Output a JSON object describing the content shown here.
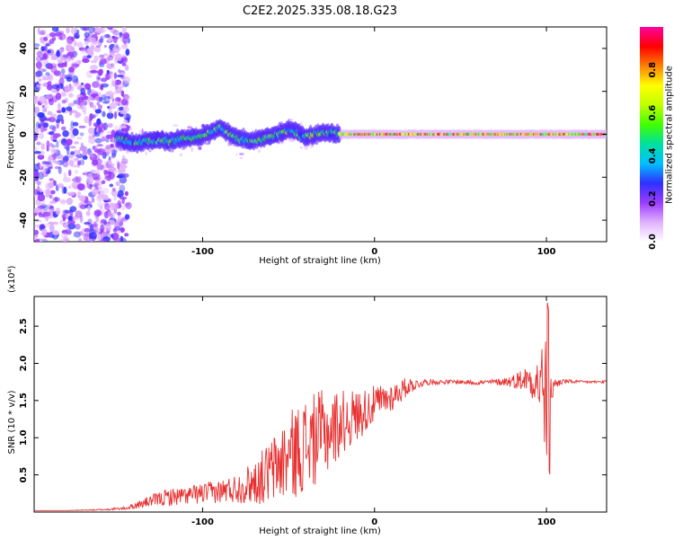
{
  "chart_data": [
    {
      "type": "heatmap",
      "title": "C2E2.2025.335.08.18.G23",
      "xlabel": "Height of straight line (km)",
      "ylabel": "Frequency (Hz)",
      "xlim": [
        -198,
        135
      ],
      "ylim": [
        -50,
        50
      ],
      "xticks": [
        -100,
        0,
        100
      ],
      "yticks": [
        -40,
        -20,
        0,
        20,
        40
      ],
      "xtick_labels": [
        "-100",
        "0",
        "100"
      ],
      "ytick_labels": [
        "-40",
        "-20",
        "0",
        "20",
        "40"
      ],
      "colorbar": {
        "label": "Normalized spectral amplitude",
        "range": [
          0.0,
          1.0
        ],
        "ticks": [
          0.0,
          0.2,
          0.4,
          0.6,
          0.8
        ],
        "tick_labels": [
          "0.0",
          "0.2",
          "0.4",
          "0.6",
          "0.8"
        ],
        "colors": [
          "#ffffff",
          "#e0b0ff",
          "#9a3cff",
          "#3030ff",
          "#00c0ff",
          "#00e0a0",
          "#40ff00",
          "#c0ff00",
          "#ffff00",
          "#ff8000",
          "#ff0000",
          "#ff00a0"
        ]
      },
      "ridge": [
        {
          "x": -150,
          "y": -2
        },
        {
          "x": -140,
          "y": -4
        },
        {
          "x": -130,
          "y": -3
        },
        {
          "x": -120,
          "y": -3
        },
        {
          "x": -110,
          "y": -2
        },
        {
          "x": -100,
          "y": -1
        },
        {
          "x": -90,
          "y": 3
        },
        {
          "x": -80,
          "y": -2
        },
        {
          "x": -70,
          "y": -3
        },
        {
          "x": -60,
          "y": -1
        },
        {
          "x": -50,
          "y": 2
        },
        {
          "x": -40,
          "y": -1
        },
        {
          "x": -30,
          "y": 1
        },
        {
          "x": -20,
          "y": 0
        },
        {
          "x": -10,
          "y": 0
        },
        {
          "x": 0,
          "y": 0
        },
        {
          "x": 50,
          "y": 0
        },
        {
          "x": 100,
          "y": 0
        },
        {
          "x": 135,
          "y": 0
        }
      ]
    },
    {
      "type": "line",
      "xlabel": "Height of straight line (km)",
      "ylabel": "SNR (10 * v/v)",
      "y_multiplier": "(x10⁴)",
      "xlim": [
        -198,
        135
      ],
      "ylim": [
        0,
        2.9
      ],
      "xticks": [
        -100,
        0,
        100
      ],
      "yticks": [
        0.5,
        1.0,
        1.5,
        2.0,
        2.5
      ],
      "xtick_labels": [
        "-100",
        "0",
        "100"
      ],
      "ytick_labels": [
        "0.5",
        "1.0",
        "1.5",
        "2.0",
        "2.5"
      ],
      "color": "#e83030",
      "series": [
        {
          "name": "SNR",
          "x": [
            -198,
            -180,
            -160,
            -145,
            -140,
            -130,
            -120,
            -110,
            -100,
            -90,
            -80,
            -70,
            -60,
            -50,
            -40,
            -30,
            -25,
            -20,
            -10,
            0,
            10,
            20,
            25,
            30,
            40,
            50,
            60,
            70,
            80,
            90,
            95,
            100,
            102,
            104,
            110,
            120,
            135
          ],
          "values": [
            0.02,
            0.02,
            0.03,
            0.05,
            0.08,
            0.15,
            0.2,
            0.22,
            0.25,
            0.28,
            0.32,
            0.4,
            0.55,
            0.75,
            0.9,
            1.05,
            1.1,
            1.2,
            1.3,
            1.45,
            1.55,
            1.7,
            1.72,
            1.75,
            1.75,
            1.75,
            1.74,
            1.75,
            1.76,
            1.8,
            1.75,
            1.6,
            1.3,
            1.72,
            1.76,
            1.75,
            1.75
          ],
          "amplitude": [
            0.0,
            0.0,
            0.01,
            0.02,
            0.04,
            0.08,
            0.12,
            0.12,
            0.14,
            0.16,
            0.2,
            0.3,
            0.45,
            0.6,
            0.65,
            0.6,
            0.55,
            0.45,
            0.35,
            0.25,
            0.2,
            0.12,
            0.06,
            0.04,
            0.03,
            0.03,
            0.03,
            0.04,
            0.08,
            0.2,
            0.35,
            1.0,
            0.6,
            0.08,
            0.03,
            0.02,
            0.02
          ]
        }
      ]
    }
  ]
}
